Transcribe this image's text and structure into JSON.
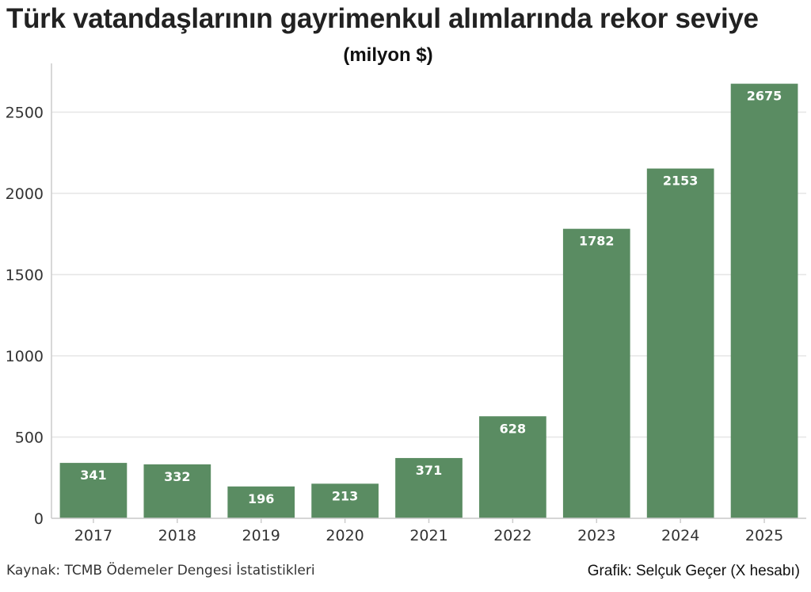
{
  "title": "Türk vatandaşlarının gayrimenkul alımlarında rekor seviye",
  "subtitle": "(milyon $)",
  "source": "Kaynak: TCMB Ödemeler Dengesi İstatistikleri",
  "credit": "Grafik: Selçuk Geçer (X hesabı)",
  "colors": {
    "bar": "#5a8c62",
    "grid": "#e6e6e6",
    "axis": "#cccccc",
    "label": "#ffffff"
  },
  "chart_data": {
    "type": "bar",
    "categories": [
      "2017",
      "2018",
      "2019",
      "2020",
      "2021",
      "2022",
      "2023",
      "2024",
      "2025"
    ],
    "values": [
      341,
      332,
      196,
      213,
      371,
      628,
      1782,
      2153,
      2675
    ],
    "ylim": [
      0,
      2800
    ],
    "yticks": [
      0,
      500,
      1000,
      1500,
      2000,
      2500
    ],
    "grid": true
  }
}
